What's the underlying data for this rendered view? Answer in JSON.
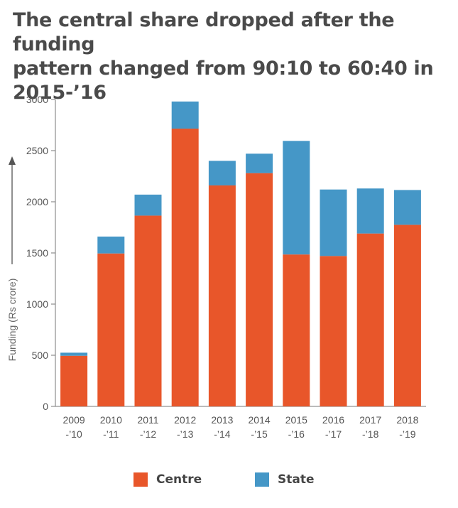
{
  "title_lines": [
    "The central share dropped after the funding",
    "pattern changed from 90:10 to 60:40 in",
    "2015-’16"
  ],
  "colors": {
    "centre": "#e8562a",
    "state": "#4597c7",
    "axis": "#777777"
  },
  "chart_data": {
    "type": "bar",
    "stacked": true,
    "title": "The central share dropped after the funding pattern changed from 90:10 to 60:40 in 2015-’16",
    "xlabel": "",
    "ylabel": "Funding (Rs crore)",
    "ylim": [
      0,
      3000
    ],
    "yticks": [
      "0",
      "500",
      "1000",
      "1500",
      "2000",
      "2500",
      "3000"
    ],
    "categories": [
      [
        "2009",
        "-’10"
      ],
      [
        "2010",
        "-’11"
      ],
      [
        "2011",
        "-’12"
      ],
      [
        "2012",
        "-’13"
      ],
      [
        "2013",
        "-’14"
      ],
      [
        "2014",
        "-’15"
      ],
      [
        "2015",
        "-’16"
      ],
      [
        "2016",
        "-’17"
      ],
      [
        "2017",
        "-’18"
      ],
      [
        "2018",
        "-’19"
      ]
    ],
    "series": [
      {
        "name": "Centre",
        "values": [
          495,
          1495,
          1865,
          2715,
          2160,
          2280,
          1485,
          1470,
          1690,
          1775
        ]
      },
      {
        "name": "State",
        "values": [
          30,
          165,
          205,
          265,
          240,
          190,
          1110,
          650,
          440,
          340
        ]
      }
    ],
    "legend": [
      "Centre",
      "State"
    ],
    "legend_position": "bottom",
    "grid": false
  }
}
